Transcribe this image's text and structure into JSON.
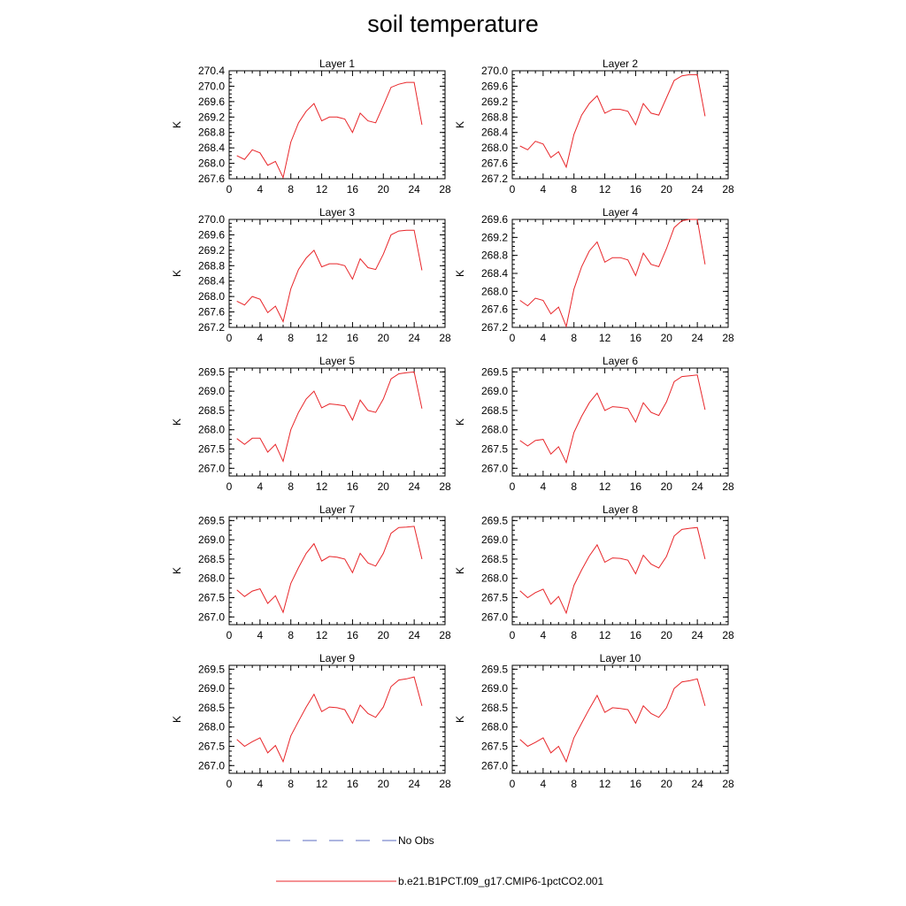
{
  "title": "soil temperature",
  "chart_data": {
    "type": "line",
    "xlim": [
      0,
      28
    ],
    "xticks": [
      "0",
      "4",
      "8",
      "12",
      "16",
      "20",
      "24",
      "28"
    ],
    "x": [
      1,
      2,
      3,
      4,
      5,
      6,
      7,
      8,
      9,
      10,
      11,
      12,
      13,
      14,
      15,
      16,
      17,
      18,
      19,
      20,
      21,
      22,
      23,
      24,
      25
    ],
    "grid": false,
    "legend": {
      "placement": "bottom-center",
      "entries": [
        {
          "name": "No Obs",
          "color": "#5b6bc0",
          "style": "dashed"
        },
        {
          "name": "b.e21.B1PCT.f09_g17.CMIP6-1pctCO2.001",
          "color": "#e8262a",
          "style": "solid"
        }
      ]
    },
    "series_color": "#e8262a",
    "panels": [
      {
        "title": "Layer 1",
        "ylabel": "K",
        "ylim": [
          267.6,
          270.4
        ],
        "yticks": [
          "267.6",
          "268.0",
          "268.4",
          "268.8",
          "269.2",
          "269.6",
          "270.0",
          "270.4"
        ],
        "values": [
          268.2,
          268.1,
          268.35,
          268.27,
          267.95,
          268.05,
          267.63,
          268.55,
          269.05,
          269.35,
          269.55,
          269.1,
          269.2,
          269.2,
          269.15,
          268.8,
          269.3,
          269.1,
          269.05,
          269.5,
          269.97,
          270.05,
          270.1,
          270.1,
          269.0
        ]
      },
      {
        "title": "Layer 2",
        "ylabel": "K",
        "ylim": [
          267.2,
          270.0
        ],
        "yticks": [
          "267.2",
          "267.6",
          "268.0",
          "268.4",
          "268.8",
          "269.2",
          "269.6",
          "270.0"
        ],
        "values": [
          268.05,
          267.95,
          268.17,
          268.1,
          267.75,
          267.9,
          267.5,
          268.35,
          268.85,
          269.15,
          269.35,
          268.9,
          269.0,
          269.0,
          268.95,
          268.6,
          269.15,
          268.9,
          268.85,
          269.3,
          269.75,
          269.87,
          269.9,
          269.9,
          268.82
        ]
      },
      {
        "title": "Layer 3",
        "ylabel": "K",
        "ylim": [
          267.2,
          270.0
        ],
        "yticks": [
          "267.2",
          "267.6",
          "268.0",
          "268.4",
          "268.8",
          "269.2",
          "269.6",
          "270.0"
        ],
        "values": [
          267.88,
          267.78,
          268.0,
          267.93,
          267.58,
          267.75,
          267.35,
          268.2,
          268.7,
          269.0,
          269.2,
          268.77,
          268.85,
          268.85,
          268.8,
          268.45,
          268.98,
          268.75,
          268.7,
          269.1,
          269.6,
          269.7,
          269.72,
          269.72,
          268.68
        ]
      },
      {
        "title": "Layer 4",
        "ylabel": "K",
        "ylim": [
          267.2,
          269.6
        ],
        "yticks": [
          "267.2",
          "267.6",
          "268.0",
          "268.4",
          "268.8",
          "269.2",
          "269.6"
        ],
        "values": [
          267.8,
          267.68,
          267.85,
          267.8,
          267.5,
          267.65,
          267.22,
          268.05,
          268.55,
          268.9,
          269.1,
          268.65,
          268.75,
          268.75,
          268.7,
          268.35,
          268.85,
          268.6,
          268.55,
          268.95,
          269.42,
          269.57,
          269.6,
          269.6,
          268.6
        ]
      },
      {
        "title": "Layer 5",
        "ylabel": "K",
        "ylim": [
          266.8,
          269.6
        ],
        "yticks": [
          "267.0",
          "267.5",
          "268.0",
          "268.5",
          "269.0",
          "269.5"
        ],
        "values": [
          267.77,
          267.62,
          267.78,
          267.78,
          267.42,
          267.62,
          267.18,
          268.0,
          268.45,
          268.8,
          269.0,
          268.57,
          268.67,
          268.65,
          268.62,
          268.25,
          268.77,
          268.5,
          268.45,
          268.8,
          269.32,
          269.45,
          269.48,
          269.5,
          268.55
        ]
      },
      {
        "title": "Layer 6",
        "ylabel": "K",
        "ylim": [
          266.8,
          269.6
        ],
        "yticks": [
          "267.0",
          "267.5",
          "268.0",
          "268.5",
          "269.0",
          "269.5"
        ],
        "values": [
          267.72,
          267.58,
          267.72,
          267.75,
          267.37,
          267.56,
          267.15,
          267.93,
          268.35,
          268.7,
          268.95,
          268.5,
          268.6,
          268.58,
          268.55,
          268.2,
          268.7,
          268.45,
          268.37,
          268.72,
          269.25,
          269.38,
          269.4,
          269.42,
          268.52
        ]
      },
      {
        "title": "Layer 7",
        "ylabel": "K",
        "ylim": [
          266.8,
          269.6
        ],
        "yticks": [
          "267.0",
          "267.5",
          "268.0",
          "268.5",
          "269.0",
          "269.5"
        ],
        "values": [
          267.7,
          267.53,
          267.67,
          267.73,
          267.35,
          267.55,
          267.12,
          267.87,
          268.28,
          268.65,
          268.9,
          268.45,
          268.57,
          268.55,
          268.5,
          268.15,
          268.65,
          268.4,
          268.32,
          268.65,
          269.17,
          269.32,
          269.33,
          269.35,
          268.5
        ]
      },
      {
        "title": "Layer 8",
        "ylabel": "K",
        "ylim": [
          266.8,
          269.6
        ],
        "yticks": [
          "267.0",
          "267.5",
          "268.0",
          "268.5",
          "269.0",
          "269.5"
        ],
        "values": [
          267.68,
          267.5,
          267.63,
          267.72,
          267.33,
          267.53,
          267.1,
          267.82,
          268.22,
          268.58,
          268.87,
          268.42,
          268.53,
          268.52,
          268.47,
          268.12,
          268.6,
          268.37,
          268.27,
          268.57,
          269.1,
          269.27,
          269.3,
          269.32,
          268.5
        ]
      },
      {
        "title": "Layer 9",
        "ylabel": "K",
        "ylim": [
          266.8,
          269.6
        ],
        "yticks": [
          "267.0",
          "267.5",
          "268.0",
          "268.5",
          "269.0",
          "269.5"
        ],
        "values": [
          267.68,
          267.5,
          267.62,
          267.72,
          267.33,
          267.52,
          267.1,
          267.77,
          268.15,
          268.52,
          268.85,
          268.4,
          268.52,
          268.5,
          268.45,
          268.1,
          268.57,
          268.35,
          268.25,
          268.52,
          269.05,
          269.22,
          269.25,
          269.3,
          268.55
        ]
      },
      {
        "title": "Layer 10",
        "ylabel": "K",
        "ylim": [
          266.8,
          269.6
        ],
        "yticks": [
          "267.0",
          "267.5",
          "268.0",
          "268.5",
          "269.0",
          "269.5"
        ],
        "values": [
          267.68,
          267.5,
          267.6,
          267.72,
          267.33,
          267.5,
          267.1,
          267.72,
          268.1,
          268.47,
          268.82,
          268.38,
          268.5,
          268.48,
          268.45,
          268.1,
          268.55,
          268.35,
          268.25,
          268.5,
          269.0,
          269.17,
          269.2,
          269.25,
          268.55
        ]
      }
    ]
  }
}
